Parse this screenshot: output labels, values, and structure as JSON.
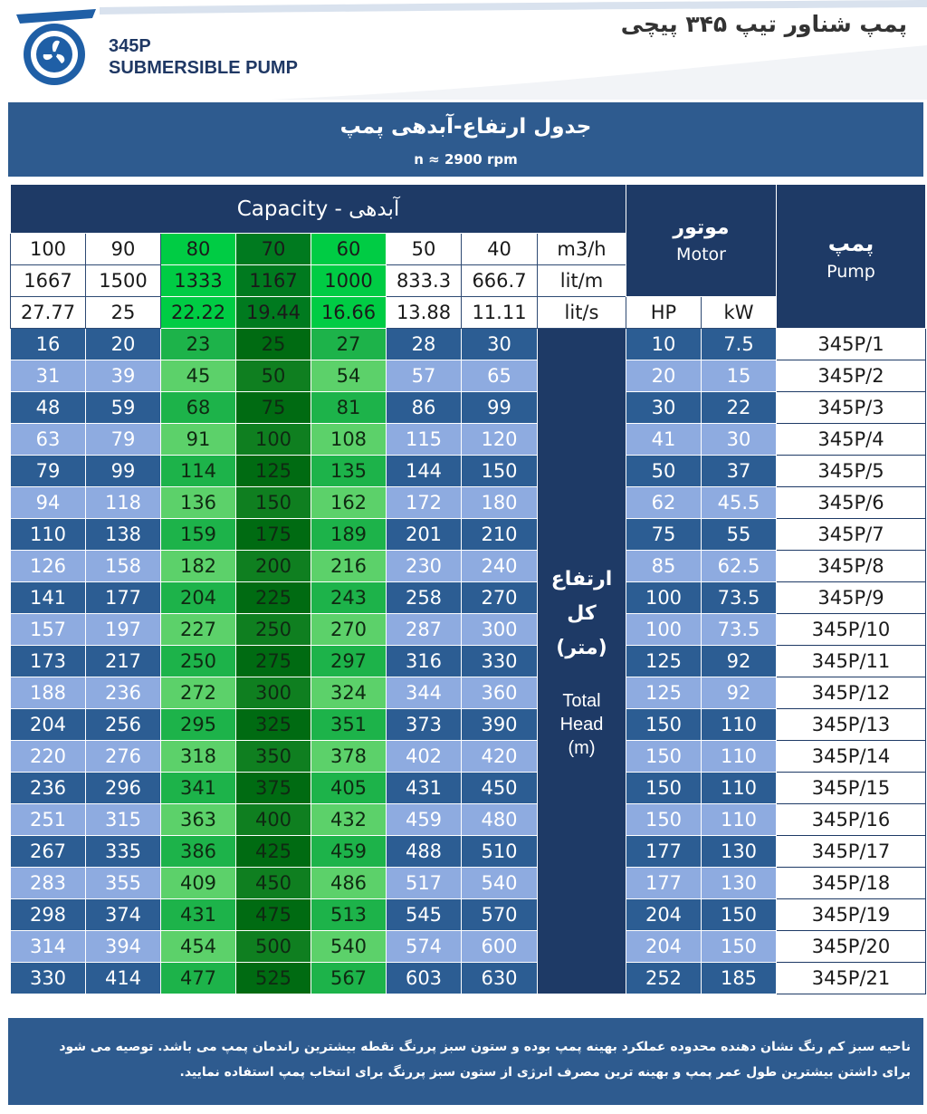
{
  "header": {
    "model_code": "345P",
    "model_name": "SUBMERSIBLE PUMP",
    "doc_title": "پمپ شناور تیپ ۳۴۵ پیچی"
  },
  "band": {
    "title": "جدول ارتفاع-آبدهی پمپ",
    "subtitle": "n ≈ 2900 rpm"
  },
  "table": {
    "capacity_header": "Capacity  -  آبدهی",
    "motor_header": {
      "fa": "موتور",
      "en": "Motor"
    },
    "pump_header": {
      "fa": "پمپ",
      "en": "Pump"
    },
    "motor_units": [
      "HP",
      "kW"
    ],
    "unit_rows": [
      {
        "values": [
          "100",
          "90",
          "80",
          "70",
          "60",
          "50",
          "40"
        ],
        "unit": "m3/h"
      },
      {
        "values": [
          "1667",
          "1500",
          "1333",
          "1167",
          "1000",
          "833.3",
          "666.7"
        ],
        "unit": "lit/m"
      },
      {
        "values": [
          "27.77",
          "25",
          "22.22",
          "19.44",
          "16.66",
          "13.88",
          "11.11"
        ],
        "unit": "lit/s"
      }
    ],
    "head_label": {
      "fa1": "ارتفاع",
      "fa2": "کل",
      "fa3": "(متر)",
      "en1": "Total",
      "en2": "Head",
      "en3": "(m)"
    },
    "rows": [
      {
        "heads": [
          "16",
          "20",
          "23",
          "25",
          "27",
          "28",
          "30"
        ],
        "hp": "10",
        "kw": "7.5",
        "pump": "345P/1"
      },
      {
        "heads": [
          "31",
          "39",
          "45",
          "50",
          "54",
          "57",
          "65"
        ],
        "hp": "20",
        "kw": "15",
        "pump": "345P/2"
      },
      {
        "heads": [
          "48",
          "59",
          "68",
          "75",
          "81",
          "86",
          "99"
        ],
        "hp": "30",
        "kw": "22",
        "pump": "345P/3"
      },
      {
        "heads": [
          "63",
          "79",
          "91",
          "100",
          "108",
          "115",
          "120"
        ],
        "hp": "41",
        "kw": "30",
        "pump": "345P/4"
      },
      {
        "heads": [
          "79",
          "99",
          "114",
          "125",
          "135",
          "144",
          "150"
        ],
        "hp": "50",
        "kw": "37",
        "pump": "345P/5"
      },
      {
        "heads": [
          "94",
          "118",
          "136",
          "150",
          "162",
          "172",
          "180"
        ],
        "hp": "62",
        "kw": "45.5",
        "pump": "345P/6"
      },
      {
        "heads": [
          "110",
          "138",
          "159",
          "175",
          "189",
          "201",
          "210"
        ],
        "hp": "75",
        "kw": "55",
        "pump": "345P/7"
      },
      {
        "heads": [
          "126",
          "158",
          "182",
          "200",
          "216",
          "230",
          "240"
        ],
        "hp": "85",
        "kw": "62.5",
        "pump": "345P/8"
      },
      {
        "heads": [
          "141",
          "177",
          "204",
          "225",
          "243",
          "258",
          "270"
        ],
        "hp": "100",
        "kw": "73.5",
        "pump": "345P/9"
      },
      {
        "heads": [
          "157",
          "197",
          "227",
          "250",
          "270",
          "287",
          "300"
        ],
        "hp": "100",
        "kw": "73.5",
        "pump": "345P/10"
      },
      {
        "heads": [
          "173",
          "217",
          "250",
          "275",
          "297",
          "316",
          "330"
        ],
        "hp": "125",
        "kw": "92",
        "pump": "345P/11"
      },
      {
        "heads": [
          "188",
          "236",
          "272",
          "300",
          "324",
          "344",
          "360"
        ],
        "hp": "125",
        "kw": "92",
        "pump": "345P/12"
      },
      {
        "heads": [
          "204",
          "256",
          "295",
          "325",
          "351",
          "373",
          "390"
        ],
        "hp": "150",
        "kw": "110",
        "pump": "345P/13"
      },
      {
        "heads": [
          "220",
          "276",
          "318",
          "350",
          "378",
          "402",
          "420"
        ],
        "hp": "150",
        "kw": "110",
        "pump": "345P/14"
      },
      {
        "heads": [
          "236",
          "296",
          "341",
          "375",
          "405",
          "431",
          "450"
        ],
        "hp": "150",
        "kw": "110",
        "pump": "345P/15"
      },
      {
        "heads": [
          "251",
          "315",
          "363",
          "400",
          "432",
          "459",
          "480"
        ],
        "hp": "150",
        "kw": "110",
        "pump": "345P/16"
      },
      {
        "heads": [
          "267",
          "335",
          "386",
          "425",
          "459",
          "488",
          "510"
        ],
        "hp": "177",
        "kw": "130",
        "pump": "345P/17"
      },
      {
        "heads": [
          "283",
          "355",
          "409",
          "450",
          "486",
          "517",
          "540"
        ],
        "hp": "177",
        "kw": "130",
        "pump": "345P/18"
      },
      {
        "heads": [
          "298",
          "374",
          "431",
          "475",
          "513",
          "545",
          "570"
        ],
        "hp": "204",
        "kw": "150",
        "pump": "345P/19"
      },
      {
        "heads": [
          "314",
          "394",
          "454",
          "500",
          "540",
          "574",
          "600"
        ],
        "hp": "204",
        "kw": "150",
        "pump": "345P/20"
      },
      {
        "heads": [
          "330",
          "414",
          "477",
          "525",
          "567",
          "603",
          "630"
        ],
        "hp": "252",
        "kw": "185",
        "pump": "345P/21"
      }
    ]
  },
  "footer": {
    "line1": "ناحیه سبز کم رنگ نشان دهنده محدوده عملکرد بهینه پمپ بوده و ستون سبز پررنگ نقطه بیشترین راندمان پمپ می باشد. توصیه می شود",
    "line2": "برای داشتن بیشترین طول عمر پمپ و بهینه ترین مصرف انرژی از ستون سبز پررنگ برای انتخاب پمپ استفاده نمایید."
  },
  "colors": {
    "navy": "#1e3a66",
    "blue_band": "#2e5b8f",
    "row_dark": "#2c5d93",
    "row_light": "#8eabe0",
    "green_light": "#00cc44",
    "green_dark": "#007a1f"
  }
}
